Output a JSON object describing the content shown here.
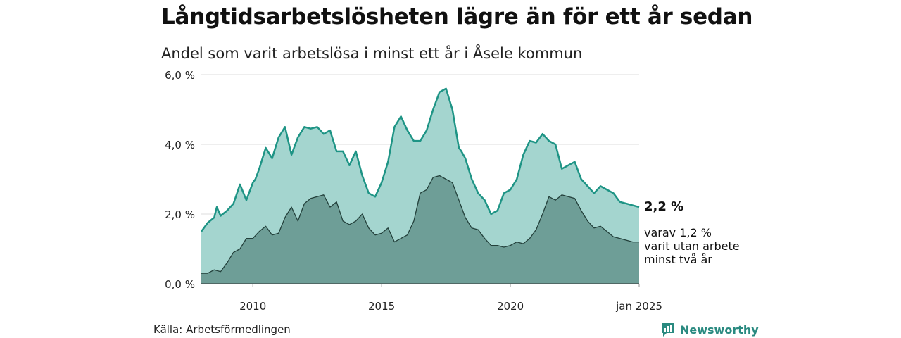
{
  "title": "Långtidsarbetslösheten lägre än för ett år sedan",
  "subtitle": "Andel som varit arbetslösa i minst ett år i Åsele kommun",
  "source": "Källa: Arbetsförmedlingen",
  "brand": {
    "name": "Newsworthy",
    "icon": "newsworthy-logo-icon"
  },
  "colors": {
    "outer_fill": "#a4d5cf",
    "outer_line": "#1e9485",
    "inner_fill": "#6e9e97",
    "inner_line": "#23403b",
    "grid": "#dcdcdc"
  },
  "chart_data": {
    "type": "area",
    "x_unit": "year",
    "xlim": [
      2008.0,
      2025.0
    ],
    "ylim": [
      0,
      6
    ],
    "y_ticks": [
      {
        "value": 0,
        "label": "0,0 %"
      },
      {
        "value": 2,
        "label": "2,0 %"
      },
      {
        "value": 4,
        "label": "4,0 %"
      },
      {
        "value": 6,
        "label": "6,0 %"
      }
    ],
    "x_ticks": [
      {
        "value": 2010,
        "label": "2010"
      },
      {
        "value": 2015,
        "label": "2015"
      },
      {
        "value": 2020,
        "label": "2020"
      },
      {
        "value": 2025,
        "label": "jan 2025"
      }
    ],
    "grid": true,
    "series": [
      {
        "end_label": "2,2 %",
        "x": [
          2008.0,
          2008.25,
          2008.5,
          2008.6,
          2008.75,
          2009.0,
          2009.25,
          2009.5,
          2009.75,
          2010.0,
          2010.1,
          2010.25,
          2010.5,
          2010.75,
          2011.0,
          2011.25,
          2011.5,
          2011.75,
          2012.0,
          2012.25,
          2012.5,
          2012.75,
          2013.0,
          2013.25,
          2013.5,
          2013.75,
          2014.0,
          2014.25,
          2014.5,
          2014.75,
          2015.0,
          2015.25,
          2015.5,
          2015.75,
          2016.0,
          2016.25,
          2016.5,
          2016.75,
          2017.0,
          2017.25,
          2017.5,
          2017.75,
          2018.0,
          2018.1,
          2018.25,
          2018.5,
          2018.75,
          2019.0,
          2019.25,
          2019.5,
          2019.75,
          2020.0,
          2020.25,
          2020.5,
          2020.75,
          2021.0,
          2021.25,
          2021.5,
          2021.75,
          2022.0,
          2022.25,
          2022.5,
          2022.75,
          2023.0,
          2023.25,
          2023.5,
          2023.75,
          2024.0,
          2024.25,
          2024.5,
          2024.75,
          2025.0
        ],
        "values": [
          1.5,
          1.75,
          1.9,
          2.2,
          1.95,
          2.1,
          2.3,
          2.85,
          2.4,
          2.9,
          3.0,
          3.3,
          3.9,
          3.6,
          4.2,
          4.5,
          3.7,
          4.2,
          4.5,
          4.45,
          4.5,
          4.3,
          4.4,
          3.8,
          3.8,
          3.4,
          3.8,
          3.1,
          2.6,
          2.5,
          2.9,
          3.5,
          4.5,
          4.8,
          4.4,
          4.1,
          4.1,
          4.4,
          5.0,
          5.5,
          5.6,
          5.0,
          3.9,
          3.8,
          3.6,
          3.0,
          2.6,
          2.4,
          2.0,
          2.1,
          2.6,
          2.7,
          3.0,
          3.7,
          4.1,
          4.05,
          4.3,
          4.1,
          4.0,
          3.3,
          3.4,
          3.5,
          3.0,
          2.8,
          2.6,
          2.8,
          2.7,
          2.6,
          2.35,
          2.3,
          2.25,
          2.2
        ]
      },
      {
        "end_label": "varav 1,2 %\nvarit utan arbete\nminst två år",
        "x": [
          2008.0,
          2008.25,
          2008.5,
          2008.75,
          2009.0,
          2009.25,
          2009.5,
          2009.75,
          2010.0,
          2010.25,
          2010.5,
          2010.75,
          2011.0,
          2011.25,
          2011.5,
          2011.75,
          2012.0,
          2012.25,
          2012.5,
          2012.75,
          2013.0,
          2013.25,
          2013.5,
          2013.75,
          2014.0,
          2014.25,
          2014.5,
          2014.75,
          2015.0,
          2015.25,
          2015.5,
          2015.75,
          2016.0,
          2016.25,
          2016.5,
          2016.75,
          2017.0,
          2017.25,
          2017.5,
          2017.75,
          2018.0,
          2018.25,
          2018.5,
          2018.75,
          2019.0,
          2019.25,
          2019.5,
          2019.75,
          2020.0,
          2020.25,
          2020.5,
          2020.75,
          2021.0,
          2021.25,
          2021.5,
          2021.75,
          2022.0,
          2022.25,
          2022.5,
          2022.75,
          2023.0,
          2023.25,
          2023.5,
          2023.75,
          2024.0,
          2024.25,
          2024.5,
          2024.75,
          2025.0
        ],
        "values": [
          0.3,
          0.3,
          0.4,
          0.35,
          0.6,
          0.9,
          1.0,
          1.3,
          1.3,
          1.5,
          1.65,
          1.4,
          1.45,
          1.9,
          2.2,
          1.8,
          2.3,
          2.45,
          2.5,
          2.55,
          2.2,
          2.35,
          1.8,
          1.7,
          1.8,
          2.0,
          1.6,
          1.4,
          1.45,
          1.6,
          1.2,
          1.3,
          1.4,
          1.8,
          2.6,
          2.7,
          3.05,
          3.1,
          3.0,
          2.9,
          2.4,
          1.9,
          1.6,
          1.55,
          1.3,
          1.1,
          1.1,
          1.05,
          1.1,
          1.2,
          1.15,
          1.3,
          1.55,
          2.0,
          2.5,
          2.4,
          2.55,
          2.5,
          2.45,
          2.1,
          1.8,
          1.6,
          1.65,
          1.5,
          1.35,
          1.3,
          1.25,
          1.2,
          1.2
        ]
      }
    ]
  }
}
